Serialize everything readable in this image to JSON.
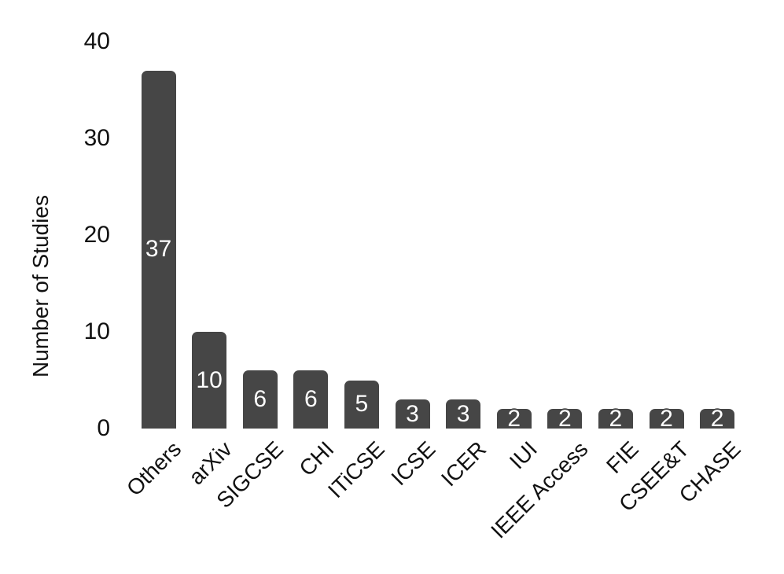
{
  "chart_data": {
    "type": "bar",
    "title": "",
    "xlabel": "",
    "ylabel": "Number of Studies",
    "categories": [
      "Others",
      "arXiv",
      "SIGCSE",
      "CHI",
      "ITiCSE",
      "ICSE",
      "ICER",
      "IUI",
      "IEEE Access",
      "FIE",
      "CSEE&T",
      "CHASE"
    ],
    "values": [
      37,
      10,
      6,
      6,
      5,
      3,
      3,
      2,
      2,
      2,
      2,
      2
    ],
    "value_labels": [
      "37",
      "10",
      "6",
      "6",
      "5",
      "3",
      "3",
      "2",
      "2",
      "2",
      "2",
      "2"
    ],
    "yticks": [
      0,
      10,
      20,
      30,
      40
    ],
    "ytick_labels": [
      "0",
      "10",
      "20",
      "30",
      "40"
    ],
    "ylim": [
      0,
      40
    ],
    "grid": "off",
    "legend": "none",
    "colors": {
      "bar": "#464646",
      "value_label": "#ffffff",
      "axis_text": "#111111",
      "background": "#ffffff"
    }
  }
}
